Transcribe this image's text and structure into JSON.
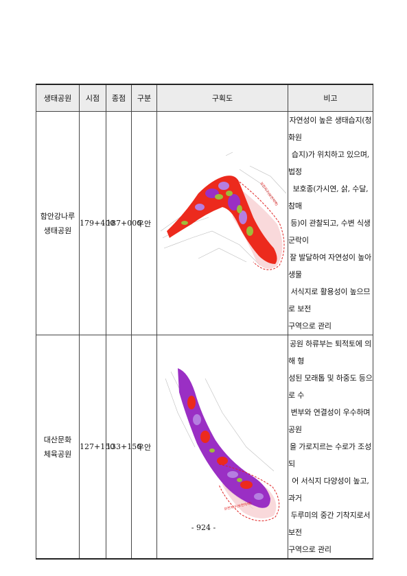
{
  "table": {
    "headers": [
      "생태공원",
      "시점",
      "종점",
      "구분",
      "구획도",
      "비고"
    ],
    "rows": [
      {
        "park": "함안강나루\n생태공원",
        "start": "179+400",
        "end": "187+000",
        "side": "우안",
        "map_label": "보전지구(보전지역)",
        "notes": [
          "자연성이 높은 생태습지(청화원",
          "습지)가 위치하고 있으며, 법정",
          "보호종(가시연, 삵, 수달, 참매",
          "등)이 관찰되고, 수변 식생군락이",
          "잘 발달하여 자연성이 높아 생물",
          "서식지로 활용성이 높으므로 보전",
          "구역으로 관리"
        ]
      },
      {
        "park": "대산문화\n체육공원",
        "start": "127+150",
        "end": "133+150",
        "side": "우안",
        "map_label": "보전지구(보전지역)",
        "notes": [
          "공원 하류부는 퇴적토에 의해 형",
          "성된 모래톱 및 하중도 등으로 수",
          "변부와 연결성이 우수하며 공원",
          "을 가로지르는 수로가 조성되",
          "어 서식지 다양성이 높고, 과거",
          "두루미의 중간 기착지로서 보전",
          "구역으로 관리"
        ]
      }
    ]
  },
  "page_number": "- 924 -",
  "colors": {
    "red": "#ec2a1d",
    "purple": "#9a2fc4",
    "violet": "#b57ee0",
    "olive": "#9fbc3a",
    "pink_zone": "#f6c9cc",
    "boundary": "#e02020"
  }
}
